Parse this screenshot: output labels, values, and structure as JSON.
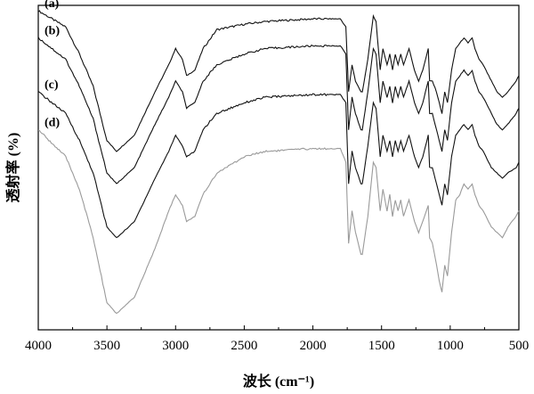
{
  "chart_data": {
    "type": "line",
    "xlabel": "波长 (cm⁻¹)",
    "ylabel": "透射率 (%)",
    "xlim": [
      4000,
      500
    ],
    "x_reversed": true,
    "x_ticks": [
      4000,
      3500,
      3000,
      2500,
      2000,
      1500,
      1000,
      500
    ],
    "y_ticks_shown": false,
    "grid": false,
    "series": [
      {
        "name": "(a)",
        "color": "#111111",
        "points": [
          [
            4000,
            99
          ],
          [
            3800,
            96
          ],
          [
            3700,
            91
          ],
          [
            3600,
            85
          ],
          [
            3500,
            75
          ],
          [
            3430,
            73
          ],
          [
            3300,
            76
          ],
          [
            3150,
            84
          ],
          [
            3050,
            89
          ],
          [
            3000,
            92
          ],
          [
            2950,
            90
          ],
          [
            2920,
            87
          ],
          [
            2860,
            88
          ],
          [
            2800,
            92
          ],
          [
            2700,
            95.5
          ],
          [
            2500,
            96.5
          ],
          [
            2350,
            97
          ],
          [
            2000,
            97.5
          ],
          [
            1800,
            97.5
          ],
          [
            1760,
            96
          ],
          [
            1740,
            84
          ],
          [
            1715,
            89
          ],
          [
            1690,
            86
          ],
          [
            1650,
            84
          ],
          [
            1640,
            84
          ],
          [
            1600,
            90
          ],
          [
            1560,
            98
          ],
          [
            1540,
            97
          ],
          [
            1510,
            88
          ],
          [
            1490,
            92
          ],
          [
            1460,
            89
          ],
          [
            1440,
            91
          ],
          [
            1420,
            88
          ],
          [
            1400,
            91
          ],
          [
            1380,
            89
          ],
          [
            1360,
            91
          ],
          [
            1340,
            89
          ],
          [
            1300,
            92
          ],
          [
            1260,
            88
          ],
          [
            1230,
            86
          ],
          [
            1200,
            88
          ],
          [
            1160,
            92
          ],
          [
            1150,
            86
          ],
          [
            1130,
            86
          ],
          [
            1100,
            84
          ],
          [
            1080,
            82
          ],
          [
            1060,
            80
          ],
          [
            1040,
            84
          ],
          [
            1020,
            82
          ],
          [
            990,
            88
          ],
          [
            960,
            92
          ],
          [
            930,
            93
          ],
          [
            900,
            94
          ],
          [
            870,
            93
          ],
          [
            840,
            94
          ],
          [
            820,
            92
          ],
          [
            790,
            90
          ],
          [
            760,
            89
          ],
          [
            740,
            88
          ],
          [
            700,
            86
          ],
          [
            660,
            84
          ],
          [
            620,
            83
          ],
          [
            580,
            84
          ],
          [
            520,
            86
          ],
          [
            500,
            87
          ]
        ]
      },
      {
        "name": "(b)",
        "color": "#111111",
        "points": [
          [
            4000,
            94
          ],
          [
            3800,
            90
          ],
          [
            3700,
            85
          ],
          [
            3600,
            79
          ],
          [
            3500,
            69
          ],
          [
            3430,
            67
          ],
          [
            3300,
            70
          ],
          [
            3150,
            78
          ],
          [
            3050,
            83
          ],
          [
            3000,
            86
          ],
          [
            2950,
            84
          ],
          [
            2920,
            81
          ],
          [
            2860,
            82
          ],
          [
            2800,
            86
          ],
          [
            2700,
            89
          ],
          [
            2500,
            91
          ],
          [
            2350,
            92
          ],
          [
            2000,
            92.5
          ],
          [
            1800,
            92.5
          ],
          [
            1760,
            91
          ],
          [
            1740,
            77
          ],
          [
            1715,
            83
          ],
          [
            1690,
            80
          ],
          [
            1650,
            77
          ],
          [
            1640,
            77
          ],
          [
            1600,
            84
          ],
          [
            1560,
            92
          ],
          [
            1540,
            91
          ],
          [
            1510,
            82
          ],
          [
            1490,
            86
          ],
          [
            1460,
            83
          ],
          [
            1440,
            85
          ],
          [
            1420,
            82
          ],
          [
            1400,
            85
          ],
          [
            1380,
            83
          ],
          [
            1360,
            85
          ],
          [
            1340,
            83
          ],
          [
            1300,
            86
          ],
          [
            1260,
            82
          ],
          [
            1230,
            80
          ],
          [
            1200,
            82
          ],
          [
            1160,
            86
          ],
          [
            1150,
            80
          ],
          [
            1130,
            80
          ],
          [
            1100,
            77
          ],
          [
            1080,
            75
          ],
          [
            1060,
            73
          ],
          [
            1040,
            77
          ],
          [
            1020,
            75
          ],
          [
            990,
            82
          ],
          [
            960,
            86
          ],
          [
            930,
            87
          ],
          [
            900,
            88
          ],
          [
            870,
            87
          ],
          [
            840,
            88
          ],
          [
            820,
            86
          ],
          [
            790,
            84
          ],
          [
            760,
            83
          ],
          [
            740,
            82
          ],
          [
            700,
            80
          ],
          [
            660,
            78
          ],
          [
            620,
            77
          ],
          [
            580,
            78
          ],
          [
            520,
            80
          ],
          [
            500,
            81
          ]
        ]
      },
      {
        "name": "(c)",
        "color": "#111111",
        "points": [
          [
            4000,
            84
          ],
          [
            3800,
            80
          ],
          [
            3700,
            75
          ],
          [
            3600,
            69
          ],
          [
            3500,
            59
          ],
          [
            3430,
            57
          ],
          [
            3300,
            60
          ],
          [
            3150,
            68
          ],
          [
            3050,
            73
          ],
          [
            3000,
            76
          ],
          [
            2950,
            74
          ],
          [
            2920,
            72
          ],
          [
            2860,
            73
          ],
          [
            2800,
            77
          ],
          [
            2700,
            80
          ],
          [
            2500,
            82
          ],
          [
            2350,
            83
          ],
          [
            2000,
            83.5
          ],
          [
            1800,
            83.5
          ],
          [
            1760,
            82
          ],
          [
            1740,
            67
          ],
          [
            1715,
            73
          ],
          [
            1690,
            70
          ],
          [
            1650,
            67
          ],
          [
            1640,
            67
          ],
          [
            1600,
            74
          ],
          [
            1560,
            82
          ],
          [
            1540,
            81
          ],
          [
            1510,
            72
          ],
          [
            1490,
            76
          ],
          [
            1460,
            73
          ],
          [
            1440,
            75
          ],
          [
            1420,
            72
          ],
          [
            1400,
            75
          ],
          [
            1380,
            73
          ],
          [
            1360,
            75
          ],
          [
            1340,
            73
          ],
          [
            1300,
            76
          ],
          [
            1260,
            72
          ],
          [
            1230,
            70
          ],
          [
            1200,
            72
          ],
          [
            1160,
            76
          ],
          [
            1150,
            70
          ],
          [
            1130,
            70
          ],
          [
            1100,
            67
          ],
          [
            1080,
            65
          ],
          [
            1060,
            63
          ],
          [
            1040,
            67
          ],
          [
            1020,
            65
          ],
          [
            990,
            72
          ],
          [
            960,
            76
          ],
          [
            930,
            77
          ],
          [
            900,
            78
          ],
          [
            870,
            77
          ],
          [
            840,
            78
          ],
          [
            820,
            76
          ],
          [
            790,
            74
          ],
          [
            760,
            73
          ],
          [
            740,
            72
          ],
          [
            700,
            70
          ],
          [
            660,
            69
          ],
          [
            620,
            68
          ],
          [
            580,
            69
          ],
          [
            520,
            70
          ],
          [
            500,
            71
          ]
        ]
      },
      {
        "name": "(d)",
        "color": "#9a9a9a",
        "points": [
          [
            4000,
            77
          ],
          [
            3800,
            72
          ],
          [
            3700,
            66
          ],
          [
            3600,
            57
          ],
          [
            3500,
            45
          ],
          [
            3430,
            43
          ],
          [
            3300,
            46
          ],
          [
            3150,
            55
          ],
          [
            3050,
            62
          ],
          [
            3000,
            65
          ],
          [
            2950,
            63
          ],
          [
            2920,
            60
          ],
          [
            2860,
            61
          ],
          [
            2800,
            65
          ],
          [
            2700,
            69
          ],
          [
            2500,
            72
          ],
          [
            2350,
            73
          ],
          [
            2000,
            73.5
          ],
          [
            1800,
            73.5
          ],
          [
            1760,
            71
          ],
          [
            1740,
            56
          ],
          [
            1715,
            62
          ],
          [
            1690,
            58
          ],
          [
            1650,
            54
          ],
          [
            1640,
            54
          ],
          [
            1600,
            61
          ],
          [
            1560,
            71
          ],
          [
            1540,
            70
          ],
          [
            1510,
            62
          ],
          [
            1490,
            66
          ],
          [
            1460,
            62
          ],
          [
            1440,
            65
          ],
          [
            1420,
            61
          ],
          [
            1400,
            64
          ],
          [
            1380,
            62
          ],
          [
            1360,
            64
          ],
          [
            1340,
            61
          ],
          [
            1300,
            64
          ],
          [
            1260,
            60
          ],
          [
            1230,
            58
          ],
          [
            1200,
            60
          ],
          [
            1160,
            63
          ],
          [
            1150,
            57
          ],
          [
            1130,
            56
          ],
          [
            1100,
            52
          ],
          [
            1080,
            49
          ],
          [
            1060,
            47
          ],
          [
            1040,
            52
          ],
          [
            1020,
            50
          ],
          [
            990,
            58
          ],
          [
            960,
            64
          ],
          [
            930,
            65
          ],
          [
            900,
            67
          ],
          [
            870,
            66
          ],
          [
            840,
            67
          ],
          [
            820,
            65
          ],
          [
            790,
            63
          ],
          [
            760,
            62
          ],
          [
            740,
            61
          ],
          [
            700,
            59
          ],
          [
            660,
            58
          ],
          [
            620,
            57
          ],
          [
            580,
            59
          ],
          [
            520,
            61
          ],
          [
            500,
            62
          ]
        ]
      }
    ]
  }
}
